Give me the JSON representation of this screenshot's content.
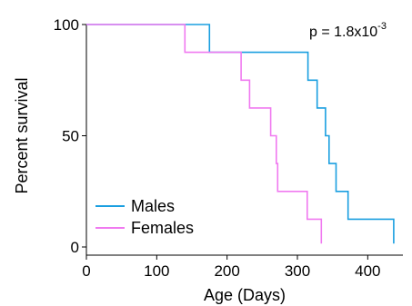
{
  "chart_data": {
    "type": "line",
    "step": true,
    "title": "",
    "xlabel": "Age (Days)",
    "ylabel": "Percent survival",
    "xlim": [
      0,
      450
    ],
    "ylim": [
      0,
      100
    ],
    "xticks": [
      0,
      100,
      200,
      300,
      400
    ],
    "yticks": [
      0,
      50,
      100
    ],
    "grid": false,
    "legend_position": "bottom-left",
    "annotation": {
      "prefix": "p = 1.8x10",
      "exponent": "-3"
    },
    "series": [
      {
        "name": "Males",
        "color": "#1a9fe0",
        "x": [
          0,
          175,
          175,
          315,
          315,
          328,
          328,
          340,
          340,
          345,
          345,
          355,
          355,
          372,
          372,
          437,
          437
        ],
        "y": [
          100,
          100,
          87.5,
          87.5,
          75,
          75,
          62.5,
          62.5,
          50,
          50,
          37.5,
          37.5,
          25,
          25,
          12.5,
          12.5,
          1.5
        ]
      },
      {
        "name": "Females",
        "color": "#f07af0",
        "x": [
          0,
          140,
          140,
          220,
          220,
          232,
          232,
          262,
          262,
          270,
          270,
          272,
          272,
          314,
          314,
          334,
          334
        ],
        "y": [
          100,
          100,
          87.5,
          87.5,
          75,
          75,
          62.5,
          62.5,
          50,
          50,
          37.5,
          37.5,
          25,
          25,
          12.5,
          12.5,
          1.5
        ]
      }
    ]
  }
}
